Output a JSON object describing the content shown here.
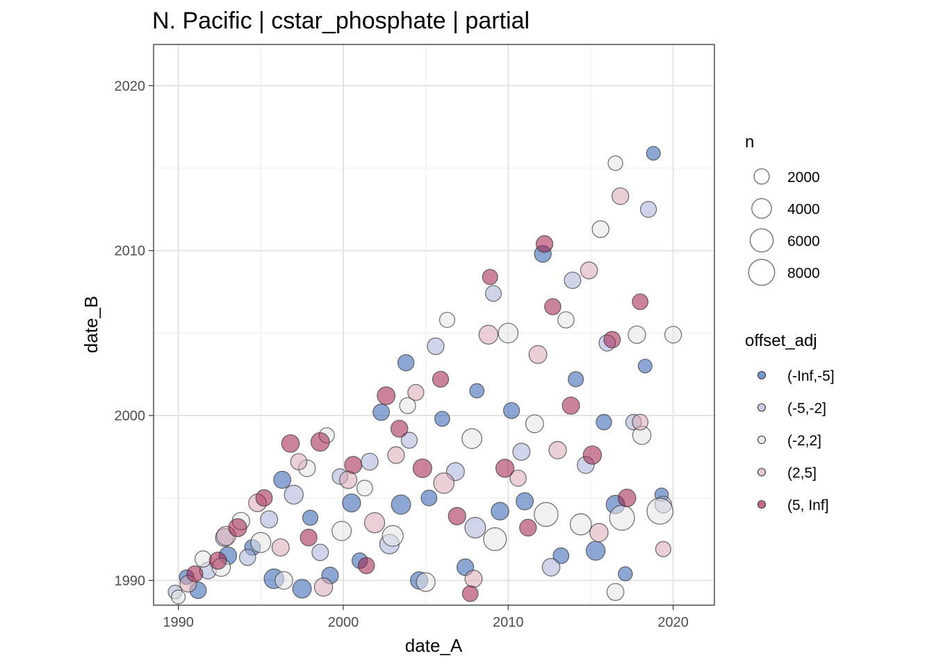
{
  "chart_data": {
    "type": "scatter",
    "title": "N. Pacific | cstar_phosphate | partial",
    "xlabel": "date_A",
    "ylabel": "date_B",
    "xlim": [
      1988.5,
      2022.5
    ],
    "ylim": [
      1988.5,
      2022.5
    ],
    "xticks": [
      1990,
      2000,
      2010,
      2020
    ],
    "yticks": [
      1990,
      2000,
      2010,
      2020
    ],
    "grid": true,
    "size_legend": {
      "title": "n",
      "breaks": [
        2000,
        4000,
        6000,
        8000
      ],
      "labels": [
        "2000",
        "4000",
        "6000",
        "8000"
      ]
    },
    "color_legend": {
      "title": "offset_adj",
      "placement": "right",
      "classes": [
        {
          "label": "(-Inf,-5]",
          "color": "#2f5fb3"
        },
        {
          "label": "(-5,-2]",
          "color": "#a9b1d9"
        },
        {
          "label": "(-2,2]",
          "color": "#e6e6e6"
        },
        {
          "label": "(2,5]",
          "color": "#d9a7b5"
        },
        {
          "label": "(5, Inf]",
          "color": "#a11d4b"
        }
      ]
    },
    "series": [
      {
        "name": "(-Inf,-5]",
        "points": [
          [
            1990.5,
            1990.2,
            1800
          ],
          [
            1991.2,
            1989.4,
            2500
          ],
          [
            1993.0,
            1991.5,
            3000
          ],
          [
            1994.5,
            1992.0,
            2200
          ],
          [
            1995.8,
            1990.1,
            4000
          ],
          [
            1996.3,
            1996.1,
            2800
          ],
          [
            1997.5,
            1989.5,
            3500
          ],
          [
            1998.0,
            1993.8,
            2000
          ],
          [
            1999.2,
            1990.3,
            2600
          ],
          [
            2000.5,
            1994.7,
            3200
          ],
          [
            2001.0,
            1991.2,
            2100
          ],
          [
            2002.3,
            2000.2,
            2500
          ],
          [
            2003.5,
            1994.6,
            3800
          ],
          [
            2003.8,
            2003.2,
            2400
          ],
          [
            2004.6,
            1990.0,
            2900
          ],
          [
            2005.2,
            1995.0,
            2200
          ],
          [
            2006.0,
            1999.8,
            1900
          ],
          [
            2007.4,
            1990.8,
            2600
          ],
          [
            2008.1,
            2001.5,
            1700
          ],
          [
            2009.5,
            1994.2,
            3000
          ],
          [
            2010.2,
            2000.3,
            2300
          ],
          [
            2011.0,
            1994.8,
            2800
          ],
          [
            2012.1,
            2009.8,
            2600
          ],
          [
            2013.2,
            1991.5,
            2200
          ],
          [
            2014.1,
            2002.2,
            2000
          ],
          [
            2015.3,
            1991.8,
            3600
          ],
          [
            2015.8,
            1999.6,
            2100
          ],
          [
            2016.5,
            1994.6,
            3400
          ],
          [
            2017.1,
            1990.4,
            1600
          ],
          [
            2018.3,
            2003.0,
            1500
          ],
          [
            2018.8,
            2015.9,
            1500
          ],
          [
            2019.3,
            1995.2,
            1400
          ]
        ]
      },
      {
        "name": "(-5,-2]",
        "points": [
          [
            1989.8,
            1989.3,
            1500
          ],
          [
            1991.8,
            1990.6,
            2600
          ],
          [
            1992.8,
            1992.6,
            3200
          ],
          [
            1994.2,
            1991.4,
            2400
          ],
          [
            1995.5,
            1993.7,
            2800
          ],
          [
            1997.0,
            1995.2,
            3600
          ],
          [
            1998.6,
            1991.7,
            2500
          ],
          [
            1999.8,
            1996.3,
            2100
          ],
          [
            2001.6,
            1997.2,
            2700
          ],
          [
            2002.8,
            1992.2,
            3900
          ],
          [
            2004.0,
            1998.5,
            2300
          ],
          [
            2005.6,
            2004.2,
            2600
          ],
          [
            2006.8,
            1996.6,
            3100
          ],
          [
            2008.0,
            1993.2,
            4500
          ],
          [
            2009.1,
            2007.4,
            2200
          ],
          [
            2010.8,
            1997.8,
            2800
          ],
          [
            2012.6,
            1990.8,
            3000
          ],
          [
            2013.9,
            2008.2,
            2500
          ],
          [
            2014.7,
            1997.0,
            2700
          ],
          [
            2016.0,
            2004.4,
            2400
          ],
          [
            2017.6,
            1999.6,
            2100
          ],
          [
            2018.5,
            2012.5,
            2300
          ],
          [
            2019.4,
            1994.6,
            2600
          ]
        ]
      },
      {
        "name": "(-2,2]",
        "points": [
          [
            1990.0,
            1989.0,
            1500
          ],
          [
            1991.5,
            1991.3,
            2400
          ],
          [
            1992.6,
            1990.8,
            3300
          ],
          [
            1993.8,
            1993.6,
            2900
          ],
          [
            1995.0,
            1992.3,
            4200
          ],
          [
            1996.4,
            1990.0,
            3000
          ],
          [
            1997.8,
            1996.8,
            2600
          ],
          [
            1999.0,
            1998.8,
            2000
          ],
          [
            1999.9,
            1993.0,
            3800
          ],
          [
            2001.3,
            1995.6,
            2200
          ],
          [
            2003.0,
            1992.7,
            4600
          ],
          [
            2003.9,
            2000.6,
            2300
          ],
          [
            2005.0,
            1989.9,
            3500
          ],
          [
            2006.3,
            2005.8,
            2000
          ],
          [
            2007.8,
            1998.6,
            4100
          ],
          [
            2009.2,
            1992.5,
            5800
          ],
          [
            2010.0,
            2005.0,
            4000
          ],
          [
            2011.6,
            1999.5,
            3100
          ],
          [
            2012.3,
            1994.0,
            6500
          ],
          [
            2013.5,
            2005.8,
            2400
          ],
          [
            2014.4,
            1993.4,
            4800
          ],
          [
            2015.6,
            2011.3,
            2600
          ],
          [
            2016.5,
            2015.3,
            1800
          ],
          [
            2016.9,
            1993.8,
            7200
          ],
          [
            2017.8,
            2004.9,
            2900
          ],
          [
            2018.1,
            1998.8,
            3300
          ],
          [
            2019.2,
            1994.2,
            8000
          ],
          [
            2020.0,
            2004.9,
            2600
          ],
          [
            2016.5,
            1989.3,
            2700
          ]
        ]
      },
      {
        "name": "(2,5]",
        "points": [
          [
            1990.6,
            1989.8,
            2600
          ],
          [
            1992.9,
            1992.7,
            3700
          ],
          [
            1994.8,
            1994.7,
            3000
          ],
          [
            1996.2,
            1992.0,
            2800
          ],
          [
            1997.3,
            1997.2,
            2400
          ],
          [
            1998.8,
            1989.6,
            3300
          ],
          [
            2000.3,
            1996.1,
            2900
          ],
          [
            2001.9,
            1993.5,
            4200
          ],
          [
            2003.2,
            1997.6,
            2600
          ],
          [
            2004.4,
            2001.4,
            2300
          ],
          [
            2006.1,
            1995.9,
            4400
          ],
          [
            2007.9,
            1990.1,
            2800
          ],
          [
            2008.8,
            2004.9,
            3600
          ],
          [
            2010.6,
            1996.2,
            2400
          ],
          [
            2011.8,
            2003.7,
            3100
          ],
          [
            2013.0,
            1997.9,
            2900
          ],
          [
            2014.9,
            2008.8,
            2700
          ],
          [
            2015.5,
            1992.9,
            3300
          ],
          [
            2016.8,
            2013.3,
            2600
          ],
          [
            2018.0,
            1999.6,
            2200
          ],
          [
            2019.4,
            1991.9,
            2000
          ]
        ]
      },
      {
        "name": "(5, Inf]",
        "points": [
          [
            1991.0,
            1990.4,
            2300
          ],
          [
            1992.4,
            1991.2,
            2800
          ],
          [
            1993.6,
            1993.2,
            3200
          ],
          [
            1995.2,
            1995.0,
            2500
          ],
          [
            1996.8,
            1998.3,
            3000
          ],
          [
            1997.9,
            1992.6,
            2600
          ],
          [
            1998.6,
            1998.4,
            3400
          ],
          [
            2000.6,
            1997.0,
            2800
          ],
          [
            2001.4,
            1990.9,
            2400
          ],
          [
            2002.6,
            2001.2,
            3100
          ],
          [
            2003.4,
            1999.2,
            2700
          ],
          [
            2004.8,
            1996.8,
            3500
          ],
          [
            2005.9,
            2002.2,
            2300
          ],
          [
            2006.9,
            1993.9,
            2900
          ],
          [
            2007.7,
            1989.2,
            2200
          ],
          [
            2008.9,
            2008.4,
            2000
          ],
          [
            2009.8,
            1996.8,
            3200
          ],
          [
            2011.2,
            1993.2,
            2600
          ],
          [
            2012.7,
            2006.6,
            2400
          ],
          [
            2013.8,
            2000.6,
            2800
          ],
          [
            2015.1,
            1997.6,
            3300
          ],
          [
            2016.3,
            2004.6,
            2500
          ],
          [
            2017.2,
            1995.0,
            3000
          ],
          [
            2018.0,
            2006.9,
            2200
          ],
          [
            2012.2,
            2010.4,
            2600
          ]
        ]
      }
    ]
  }
}
